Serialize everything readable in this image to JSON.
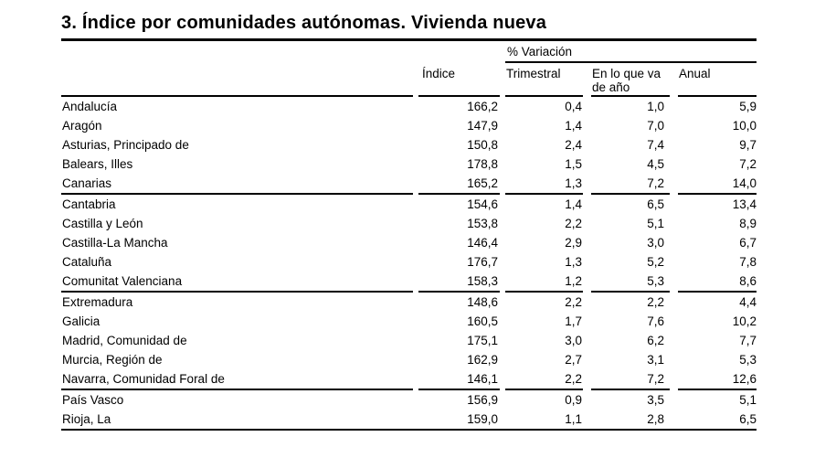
{
  "page": {
    "title": "3. Índice por comunidades autónomas. Vivienda nueva"
  },
  "table": {
    "variation_group_header": "% Variación",
    "columns": {
      "indice": "Índice",
      "trimestral": "Trimestral",
      "ytd": "En lo que va de año",
      "anual": "Anual"
    },
    "rows": [
      {
        "name": "Andalucía",
        "indice": "166,2",
        "trimestral": "0,4",
        "ytd": "1,0",
        "anual": "5,9"
      },
      {
        "name": "Aragón",
        "indice": "147,9",
        "trimestral": "1,4",
        "ytd": "7,0",
        "anual": "10,0"
      },
      {
        "name": "Asturias, Principado de",
        "indice": "150,8",
        "trimestral": "2,4",
        "ytd": "7,4",
        "anual": "9,7"
      },
      {
        "name": "Balears, Illes",
        "indice": "178,8",
        "trimestral": "1,5",
        "ytd": "4,5",
        "anual": "7,2"
      },
      {
        "name": "Canarias",
        "indice": "165,2",
        "trimestral": "1,3",
        "ytd": "7,2",
        "anual": "14,0"
      },
      {
        "name": "Cantabria",
        "indice": "154,6",
        "trimestral": "1,4",
        "ytd": "6,5",
        "anual": "13,4"
      },
      {
        "name": "Castilla y León",
        "indice": "153,8",
        "trimestral": "2,2",
        "ytd": "5,1",
        "anual": "8,9"
      },
      {
        "name": "Castilla-La Mancha",
        "indice": "146,4",
        "trimestral": "2,9",
        "ytd": "3,0",
        "anual": "6,7"
      },
      {
        "name": "Cataluña",
        "indice": "176,7",
        "trimestral": "1,3",
        "ytd": "5,2",
        "anual": "7,8"
      },
      {
        "name": "Comunitat Valenciana",
        "indice": "158,3",
        "trimestral": "1,2",
        "ytd": "5,3",
        "anual": "8,6"
      },
      {
        "name": "Extremadura",
        "indice": "148,6",
        "trimestral": "2,2",
        "ytd": "2,2",
        "anual": "4,4"
      },
      {
        "name": "Galicia",
        "indice": "160,5",
        "trimestral": "1,7",
        "ytd": "7,6",
        "anual": "10,2"
      },
      {
        "name": "Madrid, Comunidad de",
        "indice": "175,1",
        "trimestral": "3,0",
        "ytd": "6,2",
        "anual": "7,7"
      },
      {
        "name": "Murcia, Región de",
        "indice": "162,9",
        "trimestral": "2,7",
        "ytd": "3,1",
        "anual": "5,3"
      },
      {
        "name": "Navarra, Comunidad Foral de",
        "indice": "146,1",
        "trimestral": "2,2",
        "ytd": "7,2",
        "anual": "12,6"
      },
      {
        "name": "País Vasco",
        "indice": "156,9",
        "trimestral": "0,9",
        "ytd": "3,5",
        "anual": "5,1"
      },
      {
        "name": "Rioja, La",
        "indice": "159,0",
        "trimestral": "1,1",
        "ytd": "2,8",
        "anual": "6,5"
      }
    ],
    "group_breaks_after_row_index": [
      4,
      9,
      14
    ],
    "line_color": "#000000",
    "background_color": "#ffffff"
  }
}
